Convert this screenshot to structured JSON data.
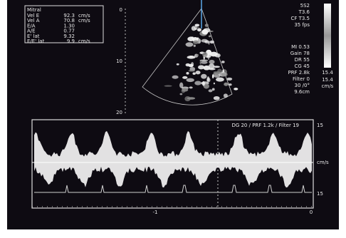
{
  "measurements": {
    "title": "Mitral",
    "rows": [
      {
        "label": "Vel E",
        "value": "92.3",
        "unit": "cm/s"
      },
      {
        "label": "Vel A",
        "value": "70.8",
        "unit": "cm/s"
      },
      {
        "label": "E/A",
        "value": "1.30"
      },
      {
        "label": "A/E",
        "value": "0.77"
      },
      {
        "label": "E' lat",
        "value": "9.32"
      },
      {
        "label": "E/E' lat",
        "value": "9.9",
        "unit": "cm/s"
      }
    ]
  },
  "settings": [
    "5S2",
    "T3.6",
    "CF T3.5",
    "35 fps",
    "MI 0.53",
    "Gain 78",
    "DR 55",
    "CG 45",
    "PRF 2.8k",
    "Filter 0",
    "30 /0°",
    "9.6cm"
  ],
  "color_bar": {
    "top": "15.4",
    "bottom": "15.4",
    "unit": "cm/s"
  },
  "depth_scale": [
    "0",
    "10",
    "20"
  ],
  "doppler": {
    "header": "DG 20 / PRF 1.2k / Filter 19",
    "scale_top": "15",
    "scale_unit": "cm/s",
    "scale_bottom": "15",
    "time_labels": [
      "-1",
      "0"
    ]
  }
}
